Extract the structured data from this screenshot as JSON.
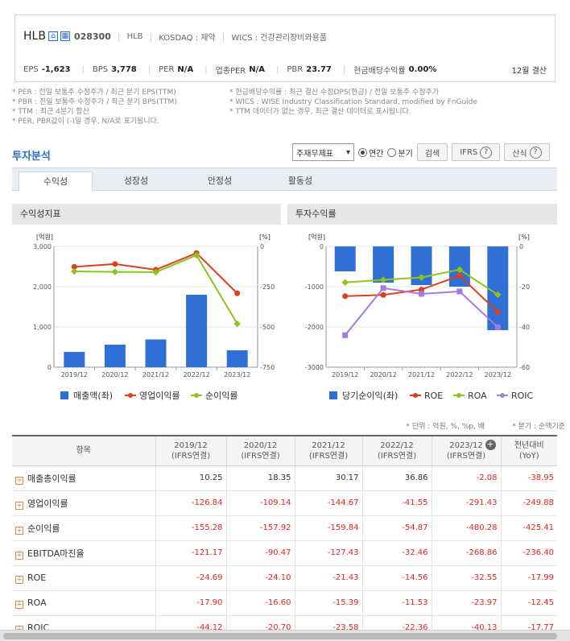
{
  "header": {
    "corp_name": "HLB",
    "icon1": "home-icon",
    "icon2": "building-icon",
    "code": "028300",
    "group": "HLB",
    "market": "KOSDAQ : 제약",
    "wics": "WICS : 건강관리장비와용품",
    "stats": [
      {
        "label": "EPS",
        "value": "-1,623"
      },
      {
        "label": "BPS",
        "value": "3,778"
      },
      {
        "label": "PER",
        "value": "N/A"
      },
      {
        "label": "업종PER",
        "value": "N/A"
      },
      {
        "label": "PBR",
        "value": "23.77"
      },
      {
        "label": "현금배당수익률",
        "value": "0.00%"
      }
    ],
    "settle": "12월 결산"
  },
  "notes": {
    "rows": [
      [
        "* PER : 전일 보통주 수정주가 / 최근 분기 EPS(TTM)",
        "* 현금배당수익률 : 최근 결산 수정DPS(현금) / 전일 보통주 수정주가"
      ],
      [
        "* PBR : 전일 보통주 수정주가 / 최근 분기 BPS(TTM)",
        "* WICS : WISE Industry Classification Standard, modified by FnGuide"
      ],
      [
        "* TTM : 최근 4분기 합산",
        "* TTM 데이터가 없는 경우, 최근 결산 데이터로 표시됩니다."
      ],
      [
        "* PER, PBR값이 (-)일 경우, N/A로 표기됩니다.",
        ""
      ]
    ]
  },
  "section": {
    "title": "투자분석",
    "select": "주재무제표",
    "radio_annual": "연간",
    "radio_quarter": "분기",
    "search_btn": "검색",
    "ifrs_btn": "IFRS",
    "formula_btn": "산식",
    "help_icon": "question-icon"
  },
  "tabs": [
    "수익성",
    "성장성",
    "안정성",
    "활동성"
  ],
  "panels": {
    "left_title": "수익성지표",
    "right_title": "투자수익률"
  },
  "chart_data": [
    {
      "type": "bar",
      "categories": [
        "2019/12",
        "2020/12",
        "2021/12",
        "2022/12",
        "2023/12"
      ],
      "series": [
        {
          "name": "매출액(좌)",
          "type": "bar",
          "axis": "left",
          "color": "#2f6fd6",
          "values": [
            380,
            560,
            690,
            1800,
            420
          ]
        },
        {
          "name": "영업이익률",
          "type": "line",
          "axis": "right",
          "color": "#d9421c",
          "values": [
            -126.84,
            -109.14,
            -144.67,
            -41.55,
            -291.43
          ]
        },
        {
          "name": "순이익률",
          "type": "line",
          "axis": "right",
          "color": "#8dc41e",
          "values": [
            -155.28,
            -157.92,
            -159.84,
            -54.87,
            -480.28
          ]
        }
      ],
      "ylabel_left": "[억원]",
      "ylabel_right": "[%]",
      "yticks_left": [
        "3,000",
        "2,000",
        "1,000",
        "0"
      ],
      "yticks_right": [
        "0",
        "-250",
        "-500",
        "-750"
      ],
      "ylim_left": [
        0,
        3000
      ],
      "ylim_right": [
        -750,
        0
      ],
      "legend": "bottom"
    },
    {
      "type": "bar",
      "categories": [
        "2019/12",
        "2020/12",
        "2021/12",
        "2022/12",
        "2023/12"
      ],
      "series": [
        {
          "name": "당기순이익(좌)",
          "type": "bar",
          "axis": "left",
          "color": "#2f6fd6",
          "values": [
            -620,
            -900,
            -960,
            -1000,
            -2080
          ]
        },
        {
          "name": "ROE",
          "type": "line",
          "axis": "right",
          "color": "#d9421c",
          "values": [
            -24.69,
            -24.1,
            -21.43,
            -14.56,
            -32.55
          ]
        },
        {
          "name": "ROA",
          "type": "line",
          "axis": "right",
          "color": "#8dc41e",
          "values": [
            -17.9,
            -16.6,
            -15.39,
            -11.53,
            -23.97
          ]
        },
        {
          "name": "ROIC",
          "type": "line",
          "axis": "right",
          "color": "#a57bdb",
          "values": [
            -44.12,
            -20.7,
            -23.58,
            -22.36,
            -40.13
          ]
        }
      ],
      "ylabel_left": "[억원]",
      "ylabel_right": "[%]",
      "yticks_left": [
        "0",
        "-1000",
        "-2000",
        "-3000"
      ],
      "yticks_right": [
        "0",
        "-20",
        "-40",
        "-60"
      ],
      "ylim_left": [
        -3000,
        0
      ],
      "ylim_right": [
        -60,
        0
      ],
      "legend": "bottom"
    }
  ],
  "table": {
    "unit_note": "* 단위 : 억원, %, %p, 배",
    "quarter_note": "* 분기 : 순액기준",
    "headers": [
      {
        "top": "항목",
        "bottom": ""
      },
      {
        "top": "2019/12",
        "bottom": "(IFRS연결)"
      },
      {
        "top": "2020/12",
        "bottom": "(IFRS연결)"
      },
      {
        "top": "2021/12",
        "bottom": "(IFRS연결)"
      },
      {
        "top": "2022/12",
        "bottom": "(IFRS연결)"
      },
      {
        "top": "2023/12",
        "bottom": "(IFRS연결)"
      },
      {
        "top": "전년대비",
        "bottom": "(YoY)"
      }
    ],
    "rows": [
      {
        "label": "매출총이익률",
        "values": [
          "10.25",
          "18.35",
          "30.17",
          "36.86",
          "-2.08",
          "-38.95"
        ]
      },
      {
        "label": "영업이익률",
        "values": [
          "-126.84",
          "-109.14",
          "-144.67",
          "-41.55",
          "-291.43",
          "-249.88"
        ]
      },
      {
        "label": "순이익률",
        "values": [
          "-155.28",
          "-157.92",
          "-159.84",
          "-54.87",
          "-480.28",
          "-425.41"
        ]
      },
      {
        "label": "EBITDA마진율",
        "values": [
          "-121.17",
          "-90.47",
          "-127.43",
          "-32.46",
          "-268.86",
          "-236.40"
        ]
      },
      {
        "label": "ROE",
        "values": [
          "-24.69",
          "-24.10",
          "-21.43",
          "-14.56",
          "-32.55",
          "-17.99"
        ]
      },
      {
        "label": "ROA",
        "values": [
          "-17.90",
          "-16.60",
          "-15.39",
          "-11.53",
          "-23.97",
          "-12.45"
        ]
      },
      {
        "label": "ROIC",
        "values": [
          "-44.12",
          "-20.70",
          "-23.58",
          "-22.36",
          "-40.13",
          "-17.77"
        ]
      }
    ]
  }
}
